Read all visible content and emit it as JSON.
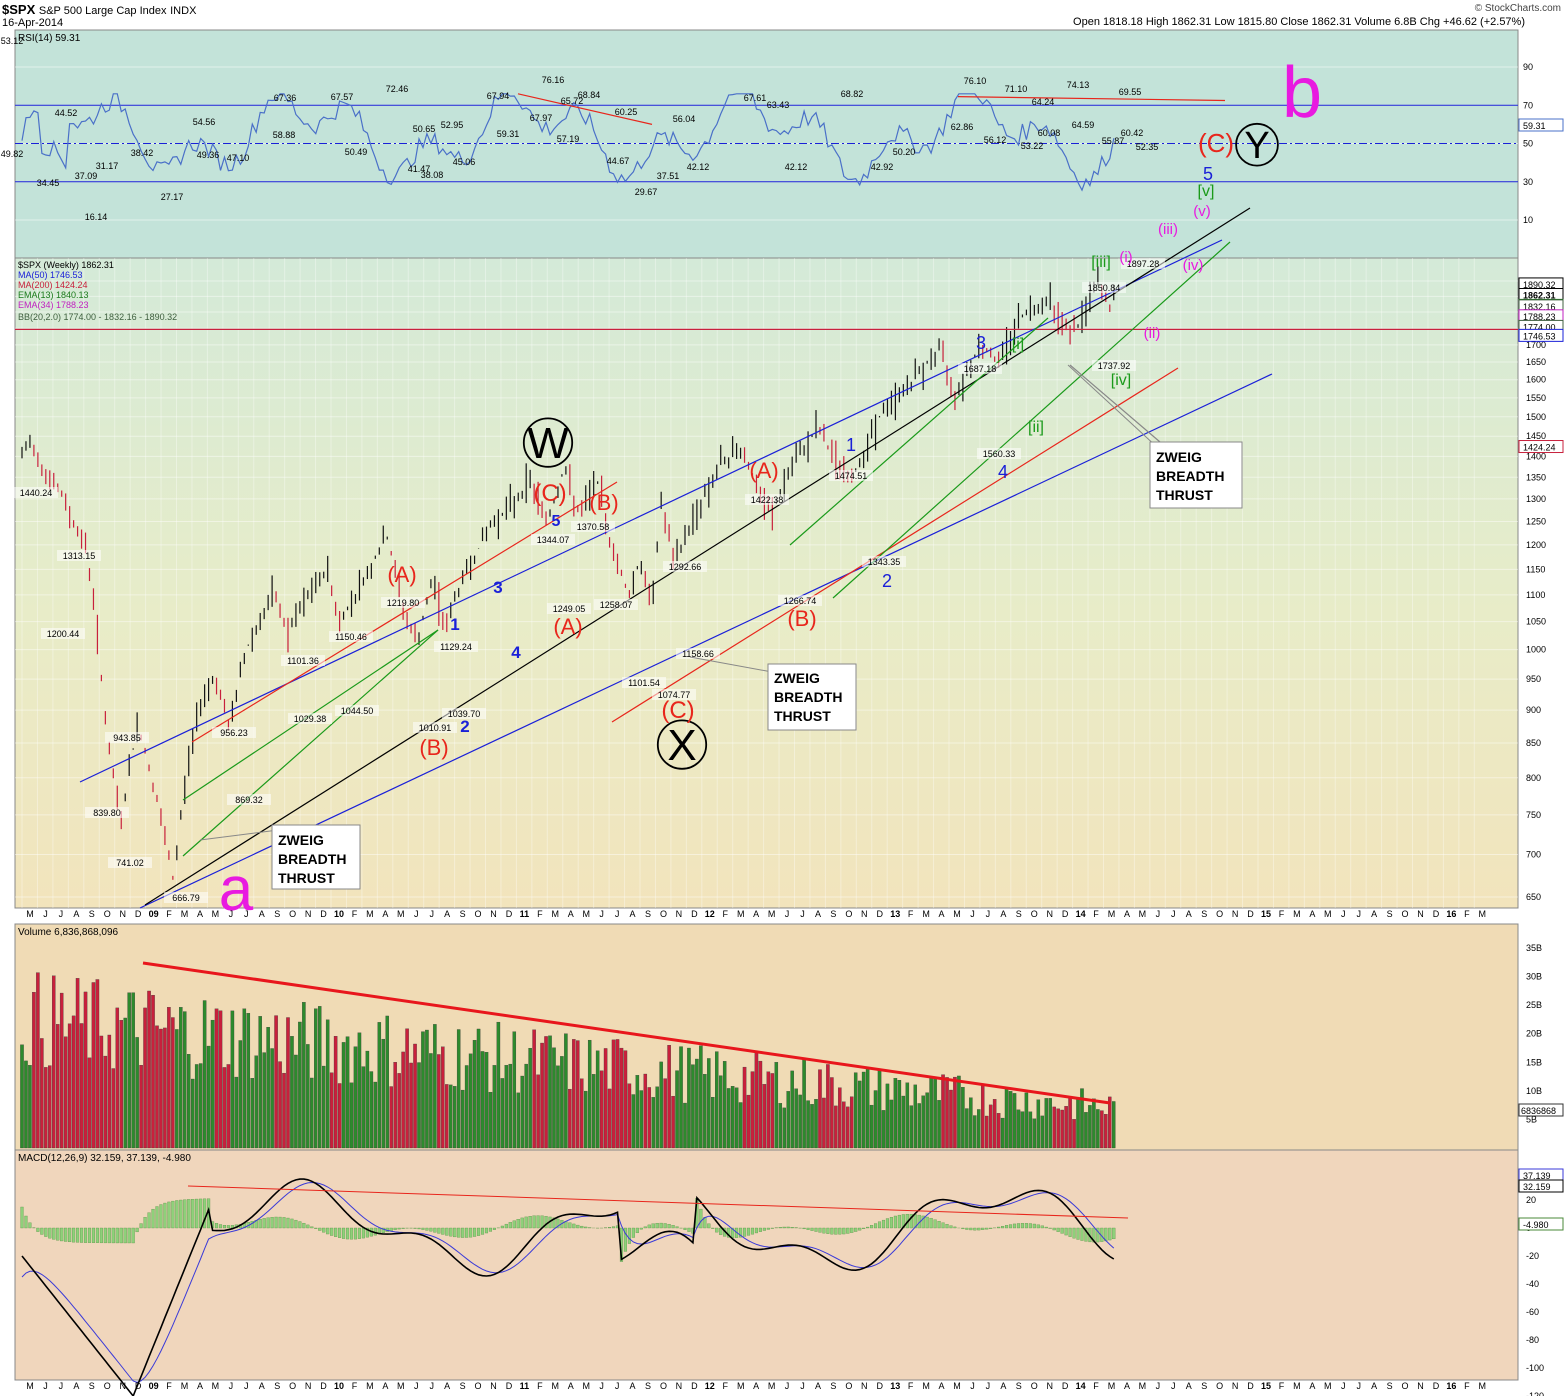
{
  "header": {
    "symbol": "$SPX",
    "name": "S&P 500 Large Cap Index",
    "exchange": "INDX",
    "date": "16-Apr-2014",
    "ohlc": "Open 1818.18  High 1862.31  Low 1815.80  Close 1862.31  Volume 6.8B  Chg +46.62 (+2.57%)",
    "brand": "© StockCharts.com"
  },
  "rsi": {
    "legend": "RSI(14) 59.31",
    "current": "59.31",
    "ticks": [
      "90",
      "70",
      "50",
      "30",
      "10"
    ],
    "labels": [
      "53.12",
      "49.82",
      "34.45",
      "37.09",
      "44.52",
      "16.14",
      "31.17",
      "27.17",
      "38.42",
      "54.56",
      "49.36",
      "47.10",
      "67.36",
      "58.88",
      "67.57",
      "50.49",
      "72.46",
      "50.65",
      "41.47",
      "38.08",
      "52.95",
      "45.06",
      "67.94",
      "59.31",
      "76.16",
      "67.97",
      "65.72",
      "68.84",
      "57.19",
      "60.25",
      "44.67",
      "29.67",
      "37.51",
      "56.04",
      "42.12",
      "67.61",
      "63.43",
      "42.12",
      "68.82",
      "42.92",
      "50.20",
      "76.10",
      "62.86",
      "71.10",
      "56.12",
      "64.24",
      "53.22",
      "60.08",
      "74.13",
      "64.59",
      "55.87",
      "69.55",
      "60.42",
      "52.35"
    ]
  },
  "price": {
    "legend": [
      "$SPX (Weekly) 1862.31",
      "MA(50) 1746.53",
      "MA(200) 1424.24",
      "EMA(13) 1840.13",
      "EMA(34) 1788.23",
      "BB(20,2.0) 1774.00 - 1832.16 - 1890.32"
    ],
    "right_labels": [
      "1890.32",
      "1862.31",
      "1840.13",
      "1832.16",
      "1788.23",
      "1774.00",
      "1746.53",
      "1424.24"
    ],
    "ticks": [
      "1900",
      "1850",
      "1800",
      "1750",
      "1700",
      "1650",
      "1600",
      "1550",
      "1500",
      "1450",
      "1400",
      "1350",
      "1300",
      "1250",
      "1200",
      "1150",
      "1100",
      "1050",
      "1000",
      "950",
      "900",
      "850",
      "800",
      "750",
      "700",
      "650"
    ],
    "value_labels": [
      "1440.24",
      "1313.15",
      "1200.44",
      "943.85",
      "839.80",
      "741.02",
      "666.79",
      "956.23",
      "869.32",
      "1101.36",
      "1029.38",
      "1150.46",
      "1044.50",
      "1219.80",
      "1010.91",
      "1129.24",
      "1039.70",
      "1344.07",
      "1249.05",
      "1370.58",
      "1258.07",
      "1292.66",
      "1101.54",
      "1158.66",
      "1074.77",
      "1422.38",
      "1266.74",
      "1474.51",
      "1343.35",
      "1687.18",
      "1560.33",
      "1850.84",
      "1897.28",
      "1737.92"
    ],
    "wave_labels": [
      "W",
      "X",
      "Y",
      "a",
      "b",
      "(A)",
      "(B)",
      "(C)",
      "(A)",
      "(B)",
      "(C)",
      "(A)",
      "(B)",
      "(C)",
      "1",
      "2",
      "3",
      "4",
      "5",
      "1",
      "2",
      "3",
      "4",
      "5",
      "[i]",
      "[ii]",
      "[iii]",
      "[iv]",
      "[v]",
      "(i)",
      "(ii)",
      "(iii)",
      "(iv)",
      "(v)"
    ],
    "notes": [
      "ZWEIG",
      "BREADTH",
      "THRUST"
    ]
  },
  "volume": {
    "legend": "Volume 6,836,868,096",
    "current": "6836868",
    "ticks": [
      "35B",
      "30B",
      "25B",
      "20B",
      "15B",
      "10B",
      "5B"
    ]
  },
  "macd": {
    "legend": "MACD(12,26,9) 32.159, 37.139, -4.980",
    "right_labels": [
      "37.139",
      "32.159",
      "-4.980"
    ],
    "ticks": [
      "40",
      "20",
      "0",
      "-20",
      "-40",
      "-60",
      "-80",
      "-100",
      "-120"
    ]
  },
  "x_axis": {
    "labels": [
      "M",
      "J",
      "J",
      "A",
      "S",
      "O",
      "N",
      "D",
      "09",
      "F",
      "M",
      "A",
      "M",
      "J",
      "J",
      "A",
      "S",
      "O",
      "N",
      "D",
      "10",
      "F",
      "M",
      "A",
      "M",
      "J",
      "J",
      "A",
      "S",
      "O",
      "N",
      "D",
      "11",
      "F",
      "M",
      "A",
      "M",
      "J",
      "J",
      "A",
      "S",
      "O",
      "N",
      "D",
      "12",
      "F",
      "M",
      "A",
      "M",
      "J",
      "J",
      "A",
      "S",
      "O",
      "N",
      "D",
      "13",
      "F",
      "M",
      "A",
      "M",
      "J",
      "J",
      "A",
      "S",
      "O",
      "N",
      "D",
      "14",
      "F",
      "M",
      "A",
      "M",
      "J",
      "J",
      "A",
      "S",
      "O",
      "N",
      "D",
      "15",
      "F",
      "M",
      "A",
      "M",
      "J",
      "J",
      "A",
      "S",
      "O",
      "N",
      "D",
      "16",
      "F",
      "M"
    ]
  },
  "colors": {
    "rsi_bg": "#c3e3d9",
    "price_bg_top": "#e0eccd",
    "price_bg_bottom": "#f2e6c0",
    "volume_bg": "#f0dbb5",
    "macd_bg": "#f0d6bc",
    "up": "#2d8a2d",
    "down": "#c8203c",
    "wave_red": "#e8261c",
    "wave_blue": "#1a20d8",
    "wave_green": "#1a9a1a",
    "wave_magenta": "#e81ae0"
  },
  "chart_data": {
    "type": "line",
    "title": "$SPX S&P 500 Large Cap Index INDX",
    "x": [
      "2008-05",
      "2008-09",
      "2008-11",
      "2009-03",
      "2009-06",
      "2009-09",
      "2010-01",
      "2010-04",
      "2010-07",
      "2010-11",
      "2011-02",
      "2011-04",
      "2011-08",
      "2011-10",
      "2011-12",
      "2012-04",
      "2012-06",
      "2012-09",
      "2012-11",
      "2013-05",
      "2013-06",
      "2014-01",
      "2014-02",
      "2014-04"
    ],
    "series": [
      {
        "name": "$SPX (Weekly)",
        "values": [
          1440.24,
          1200.44,
          741.02,
          666.79,
          869.32,
          1101.36,
          1150.46,
          1219.8,
          1010.91,
          1129.24,
          1344.07,
          1370.58,
          1101.54,
          1292.66,
          1158.66,
          1422.38,
          1266.74,
          1474.51,
          1343.35,
          1687.18,
          1560.33,
          1850.84,
          1737.92,
          1862.31
        ]
      },
      {
        "name": "RSI(14)",
        "values": [
          53.12,
          44.52,
          16.14,
          27.17,
          38.42,
          58.88,
          67.36,
          72.46,
          38.08,
          52.95,
          67.94,
          76.16,
          29.67,
          56.04,
          42.12,
          67.61,
          42.12,
          68.82,
          42.92,
          76.1,
          56.12,
          74.13,
          55.87,
          59.31
        ]
      }
    ],
    "ylim": [
      650,
      1900
    ]
  }
}
